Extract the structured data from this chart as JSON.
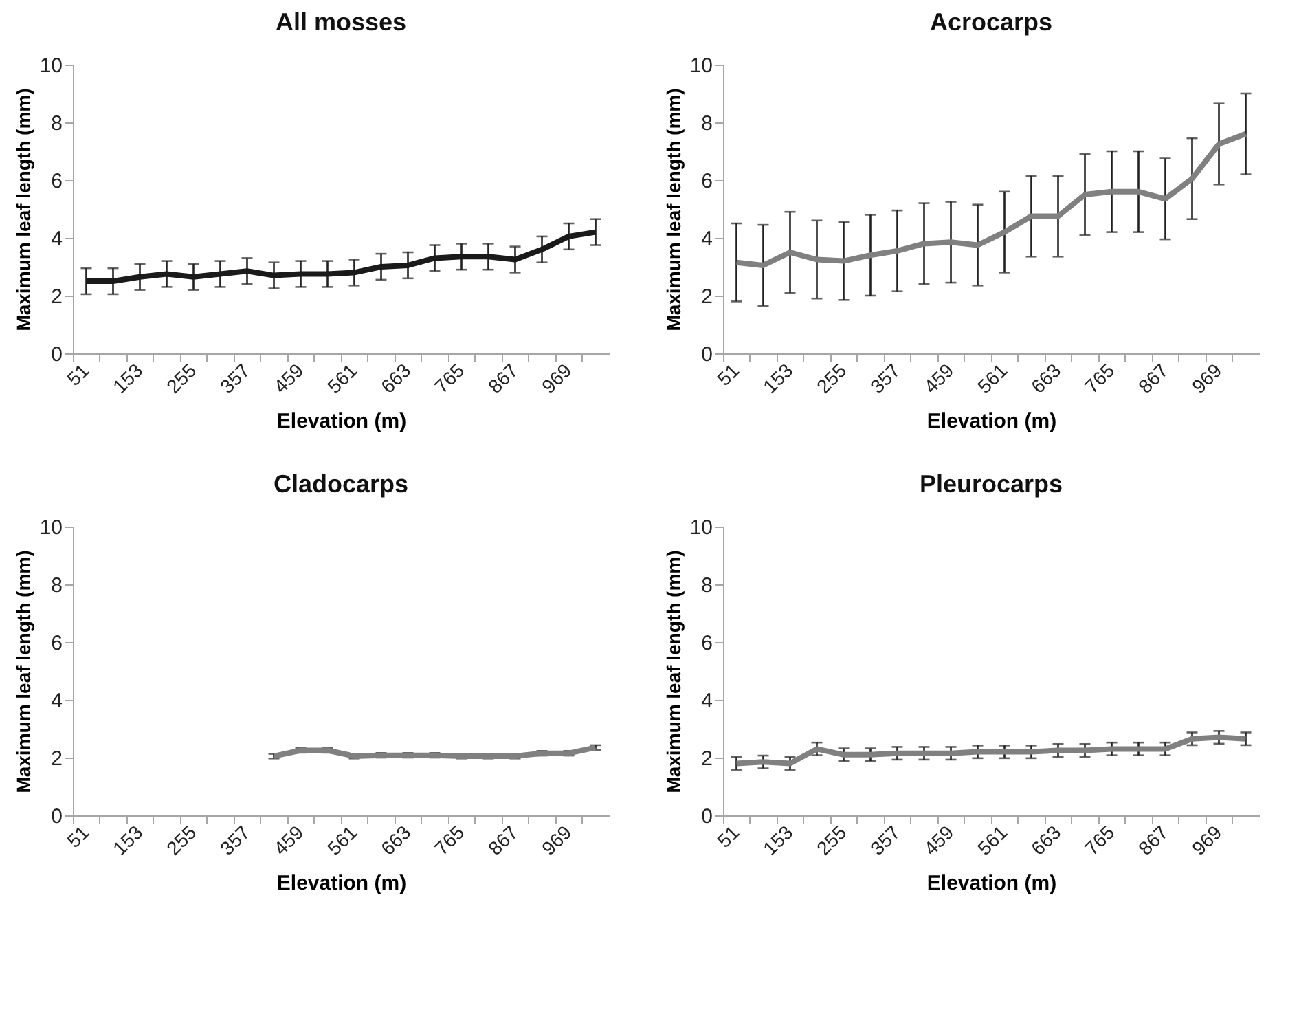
{
  "chart_data": [
    {
      "type": "line",
      "title": "All mosses",
      "xlabel": "Elevation (m)",
      "ylabel": "Maximum leaf length (mm)",
      "ylim": [
        0,
        10
      ],
      "yticks": [
        0,
        2,
        4,
        6,
        8,
        10
      ],
      "categories": [
        "51",
        null,
        "153",
        null,
        "255",
        null,
        "357",
        null,
        "459",
        null,
        "561",
        null,
        "663",
        null,
        "765",
        null,
        "867",
        null,
        "969",
        null
      ],
      "series": [
        {
          "color": "#1a1a1a",
          "values": [
            2.5,
            2.5,
            2.65,
            2.75,
            2.65,
            2.75,
            2.85,
            2.7,
            2.75,
            2.75,
            2.8,
            3.0,
            3.05,
            3.3,
            3.35,
            3.35,
            3.25,
            3.6,
            4.05,
            4.2
          ],
          "errors": [
            0.45,
            0.45,
            0.45,
            0.45,
            0.45,
            0.45,
            0.45,
            0.45,
            0.45,
            0.45,
            0.45,
            0.45,
            0.45,
            0.45,
            0.45,
            0.45,
            0.45,
            0.45,
            0.45,
            0.45
          ]
        }
      ]
    },
    {
      "type": "line",
      "title": "Acrocarps",
      "xlabel": "Elevation (m)",
      "ylabel": "Maximum leaf length (mm)",
      "ylim": [
        0,
        10
      ],
      "yticks": [
        0,
        2,
        4,
        6,
        8,
        10
      ],
      "categories": [
        "51",
        null,
        "153",
        null,
        "255",
        null,
        "357",
        null,
        "459",
        null,
        "561",
        null,
        "663",
        null,
        "765",
        null,
        "867",
        null,
        "969",
        null
      ],
      "series": [
        {
          "color": "#808080",
          "values": [
            3.15,
            3.05,
            3.5,
            3.25,
            3.2,
            3.4,
            3.55,
            3.8,
            3.85,
            3.75,
            4.2,
            4.75,
            4.75,
            5.5,
            5.6,
            5.6,
            5.35,
            6.05,
            7.25,
            7.6
          ],
          "errors": [
            1.35,
            1.4,
            1.4,
            1.35,
            1.35,
            1.4,
            1.4,
            1.4,
            1.4,
            1.4,
            1.4,
            1.4,
            1.4,
            1.4,
            1.4,
            1.4,
            1.4,
            1.4,
            1.4,
            1.4
          ]
        }
      ]
    },
    {
      "type": "line",
      "title": "Cladocarps",
      "xlabel": "Elevation (m)",
      "ylabel": "Maximum leaf length (mm)",
      "ylim": [
        0,
        10
      ],
      "yticks": [
        0,
        2,
        4,
        6,
        8,
        10
      ],
      "categories": [
        "51",
        null,
        "153",
        null,
        "255",
        null,
        "357",
        null,
        "459",
        null,
        "561",
        null,
        "663",
        null,
        "765",
        null,
        "867",
        null,
        "969",
        null
      ],
      "series": [
        {
          "color": "#808080",
          "values": [
            null,
            null,
            null,
            null,
            null,
            null,
            null,
            2.05,
            2.25,
            2.25,
            2.05,
            2.08,
            2.08,
            2.08,
            2.05,
            2.05,
            2.05,
            2.15,
            2.15,
            2.35
          ],
          "errors": [
            null,
            null,
            null,
            null,
            null,
            null,
            null,
            0.08,
            0.08,
            0.08,
            0.08,
            0.08,
            0.08,
            0.08,
            0.08,
            0.08,
            0.08,
            0.08,
            0.08,
            0.08
          ]
        }
      ]
    },
    {
      "type": "line",
      "title": "Pleurocarps",
      "xlabel": "Elevation (m)",
      "ylabel": "Maximum leaf length (mm)",
      "ylim": [
        0,
        10
      ],
      "yticks": [
        0,
        2,
        4,
        6,
        8,
        10
      ],
      "categories": [
        "51",
        null,
        "153",
        null,
        "255",
        null,
        "357",
        null,
        "459",
        null,
        "561",
        null,
        "663",
        null,
        "765",
        null,
        "867",
        null,
        "969",
        null
      ],
      "series": [
        {
          "color": "#808080",
          "values": [
            1.8,
            1.85,
            1.8,
            2.3,
            2.1,
            2.1,
            2.15,
            2.15,
            2.15,
            2.2,
            2.2,
            2.2,
            2.25,
            2.25,
            2.3,
            2.3,
            2.3,
            2.65,
            2.7,
            2.65
          ],
          "errors": [
            0.22,
            0.22,
            0.22,
            0.22,
            0.22,
            0.22,
            0.22,
            0.22,
            0.22,
            0.22,
            0.22,
            0.22,
            0.22,
            0.22,
            0.22,
            0.22,
            0.22,
            0.22,
            0.22,
            0.22
          ]
        }
      ]
    }
  ]
}
